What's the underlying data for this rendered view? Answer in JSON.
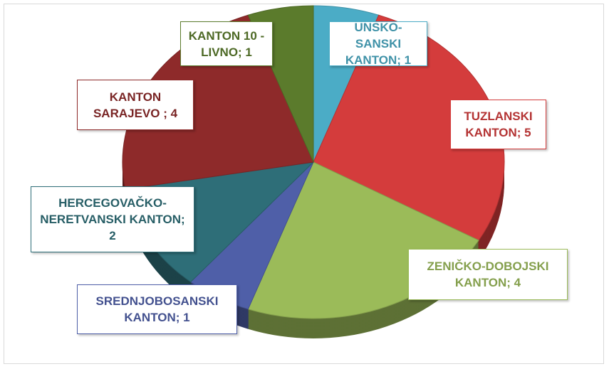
{
  "chart_data": {
    "type": "pie",
    "values": [
      1,
      5,
      4,
      1,
      2,
      4,
      1
    ],
    "value_labels": [
      "UNSKO-SANSKI KANTON; 1",
      "TUZLANSKI KANTON; 5",
      "ZENIČKO-DOBOJSKI KANTON; 4",
      "SREDNJOBOSANSKI KANTON; 1",
      "HERCEGOVAČKO-NERETVANSKI KANTON; 2",
      "KANTON SARAJEVO ; 4",
      "KANTON 10 - LIVNO; 1"
    ],
    "colors": [
      "#4bacc6",
      "#d43c3c",
      "#9bbb59",
      "#4f5fa8",
      "#2e6e78",
      "#8e2a2a",
      "#5b7b2c"
    ]
  }
}
